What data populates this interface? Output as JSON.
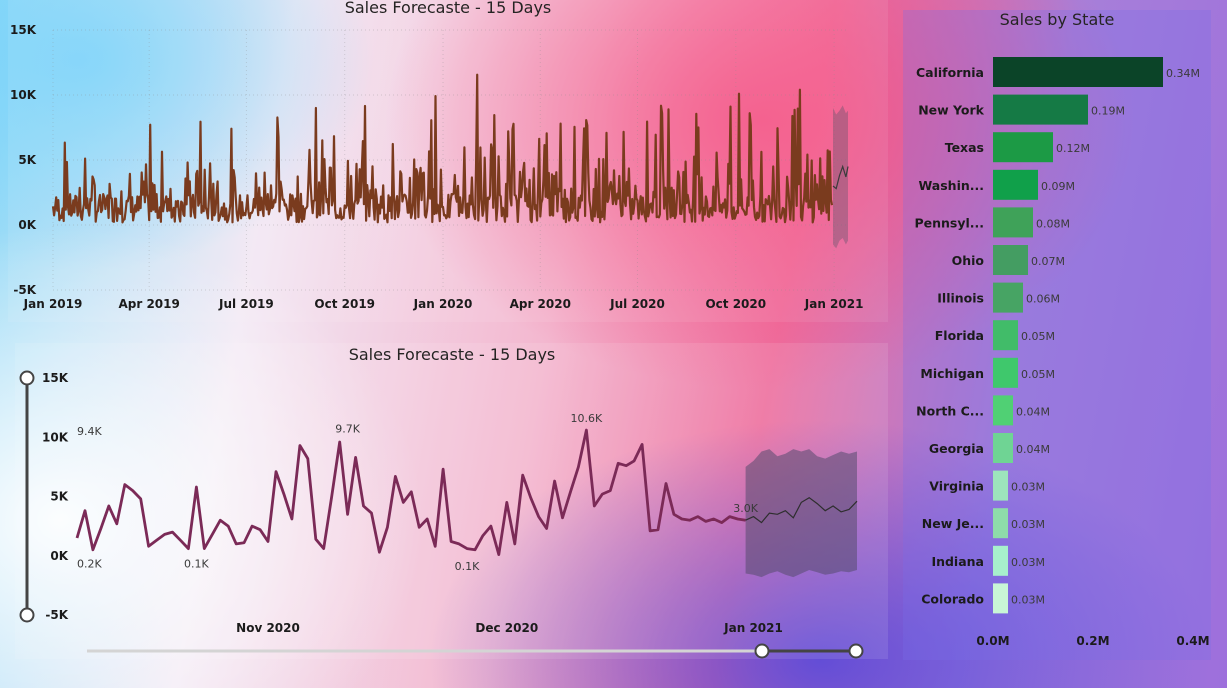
{
  "chart_data": [
    {
      "type": "line",
      "title": "Sales Forecaste - 15 Days",
      "y_ticks": [
        "15K",
        "10K",
        "5K",
        "0K",
        "-5K"
      ],
      "ylim": [
        -5000,
        15000
      ],
      "x_ticks": [
        "Jan 2019",
        "Apr 2019",
        "Jul 2019",
        "Oct 2019",
        "Jan 2020",
        "Apr 2020",
        "Jul 2020",
        "Oct 2020",
        "Jan 2021"
      ],
      "x": [
        "2019-01-01",
        "2019-02-01",
        "2019-03-01",
        "2019-04-01",
        "2019-05-01",
        "2019-06-01",
        "2019-07-01",
        "2019-08-01",
        "2019-09-01",
        "2019-10-01",
        "2019-11-01",
        "2019-12-01",
        "2020-01-01",
        "2020-02-01",
        "2020-03-01",
        "2020-04-01",
        "2020-05-01",
        "2020-06-01",
        "2020-07-01",
        "2020-08-01",
        "2020-09-01",
        "2020-10-01",
        "2020-11-01",
        "2020-12-01",
        "2021-01-01"
      ],
      "series": [
        {
          "color": "#7a3b1e",
          "values": [
            6400,
            6900,
            8900,
            6600,
            9000,
            7700,
            8800,
            7300,
            9300,
            9200,
            8600,
            10700,
            8500,
            12000,
            8900,
            8400,
            9600,
            8000,
            9300,
            10700,
            10200,
            10300,
            10500,
            10600,
            4500
          ]
        }
      ],
      "forecast": {
        "color": "#3b3b3b",
        "x": [
          "2020-12-31",
          "2021-01-03",
          "2021-01-06",
          "2021-01-09",
          "2021-01-12",
          "2021-01-14"
        ],
        "values": [
          3000,
          2800,
          3800,
          4500,
          3700,
          4500
        ],
        "upper": [
          9000,
          8500,
          8800,
          9200,
          8600,
          8800
        ],
        "lower": [
          -1500,
          -1800,
          -1200,
          -1000,
          -1500,
          -1200
        ]
      }
    },
    {
      "type": "line",
      "title": "Sales Forecaste - 15 Days",
      "y_ticks": [
        "15K",
        "10K",
        "5K",
        "0K",
        "-5K"
      ],
      "ylim": [
        -5000,
        15000
      ],
      "x_ticks": [
        "Nov 2020",
        "Dec 2020",
        "Jan 2021"
      ],
      "x_range": [
        "2020-10-08",
        "2021-01-14"
      ],
      "x": [
        "2020-10-08",
        "2020-10-09",
        "2020-10-10",
        "2020-10-11",
        "2020-10-12",
        "2020-10-13",
        "2020-10-14",
        "2020-10-15",
        "2020-10-16",
        "2020-10-17",
        "2020-10-18",
        "2020-10-19",
        "2020-10-20",
        "2020-10-21",
        "2020-10-22",
        "2020-10-23",
        "2020-10-24",
        "2020-10-25",
        "2020-10-26",
        "2020-10-27",
        "2020-10-28",
        "2020-10-29",
        "2020-10-30",
        "2020-10-31",
        "2020-11-01",
        "2020-11-02",
        "2020-11-03",
        "2020-11-04",
        "2020-11-05",
        "2020-11-06",
        "2020-11-07",
        "2020-11-08",
        "2020-11-09",
        "2020-11-10",
        "2020-11-11",
        "2020-11-12",
        "2020-11-13",
        "2020-11-14",
        "2020-11-15",
        "2020-11-16",
        "2020-11-17",
        "2020-11-18",
        "2020-11-19",
        "2020-11-20",
        "2020-11-21",
        "2020-11-22",
        "2020-11-23",
        "2020-11-24",
        "2020-11-25",
        "2020-11-26",
        "2020-11-27",
        "2020-11-28",
        "2020-11-29",
        "2020-11-30",
        "2020-12-01",
        "2020-12-02",
        "2020-12-03",
        "2020-12-04",
        "2020-12-05",
        "2020-12-06",
        "2020-12-07",
        "2020-12-08",
        "2020-12-09",
        "2020-12-10",
        "2020-12-11",
        "2020-12-12",
        "2020-12-13",
        "2020-12-14",
        "2020-12-15",
        "2020-12-16",
        "2020-12-17",
        "2020-12-18",
        "2020-12-19",
        "2020-12-20",
        "2020-12-21",
        "2020-12-22",
        "2020-12-23",
        "2020-12-24",
        "2020-12-25",
        "2020-12-26",
        "2020-12-27",
        "2020-12-28",
        "2020-12-29",
        "2020-12-30",
        "2020-12-31"
      ],
      "series": [
        {
          "color": "#7b2a57",
          "values": [
            1500,
            3800,
            500,
            2300,
            4200,
            2700,
            6000,
            5500,
            4800,
            800,
            1300,
            1800,
            2000,
            1300,
            600,
            5800,
            600,
            1800,
            3000,
            2500,
            1000,
            1100,
            2500,
            2200,
            1200,
            7100,
            5200,
            3100,
            9300,
            8200,
            1400,
            600,
            5000,
            9600,
            3500,
            8300,
            4200,
            3600,
            300,
            2400,
            6700,
            4500,
            5400,
            2400,
            3100,
            800,
            7300,
            1200,
            1000,
            600,
            500,
            1700,
            2500,
            100,
            4500,
            1000,
            6800,
            4900,
            3300,
            2300,
            6300,
            3200,
            5400,
            7500,
            10600,
            4200,
            5200,
            5500,
            7800,
            7600,
            8000,
            9400,
            2100,
            2200,
            6100,
            3500,
            3100,
            3000,
            3300,
            2900,
            3100,
            2800,
            3300,
            3100,
            3000
          ]
        }
      ],
      "forecast": {
        "color": "#2e2e2e",
        "x": [
          "2020-12-31",
          "2021-01-01",
          "2021-01-02",
          "2021-01-03",
          "2021-01-04",
          "2021-01-05",
          "2021-01-06",
          "2021-01-07",
          "2021-01-08",
          "2021-01-09",
          "2021-01-10",
          "2021-01-11",
          "2021-01-12",
          "2021-01-13",
          "2021-01-14"
        ],
        "values": [
          3000,
          3300,
          2800,
          3600,
          3500,
          3800,
          3200,
          4500,
          4900,
          4400,
          3800,
          4200,
          3700,
          3900,
          4600
        ],
        "upper": [
          7500,
          8000,
          8800,
          9000,
          8400,
          8600,
          9000,
          8800,
          9000,
          8400,
          8200,
          8500,
          8800,
          8600,
          8800
        ],
        "lower": [
          -1500,
          -1600,
          -1800,
          -1500,
          -1300,
          -1600,
          -1800,
          -1500,
          -1200,
          -1400,
          -1600,
          -1500,
          -1300,
          -1400,
          -1200
        ]
      },
      "annotations": [
        "9.4K",
        "0.2K",
        "0.1K",
        "9.7K",
        "0.1K",
        "10.6K",
        "3.0K"
      ]
    },
    {
      "type": "bar",
      "orientation": "horizontal",
      "title": "Sales by State",
      "categories": [
        "California",
        "New York",
        "Texas",
        "Washin...",
        "Pennsyl...",
        "Ohio",
        "Illinois",
        "Florida",
        "Michigan",
        "North C...",
        "Georgia",
        "Virginia",
        "New Je...",
        "Indiana",
        "Colorado"
      ],
      "values": [
        0.34,
        0.19,
        0.12,
        0.09,
        0.08,
        0.07,
        0.06,
        0.05,
        0.05,
        0.04,
        0.04,
        0.03,
        0.03,
        0.03,
        0.03
      ],
      "data_labels": [
        "0.34M",
        "0.19M",
        "0.12M",
        "0.09M",
        "0.08M",
        "0.07M",
        "0.06M",
        "0.05M",
        "0.05M",
        "0.04M",
        "0.04M",
        "0.03M",
        "0.03M",
        "0.03M",
        "0.03M"
      ],
      "colors": [
        "#0b4428",
        "#157a45",
        "#1c9a45",
        "#10a04a",
        "#3fa259",
        "#449d62",
        "#47a464",
        "#41bc69",
        "#3fc86c",
        "#50d074",
        "#6fd494",
        "#9de4bc",
        "#8edcaa",
        "#a7f0cc",
        "#c9f6d6"
      ],
      "x_ticks": [
        "0.0M",
        "0.2M",
        "0.4M"
      ],
      "xlim": [
        0,
        0.4
      ]
    }
  ]
}
